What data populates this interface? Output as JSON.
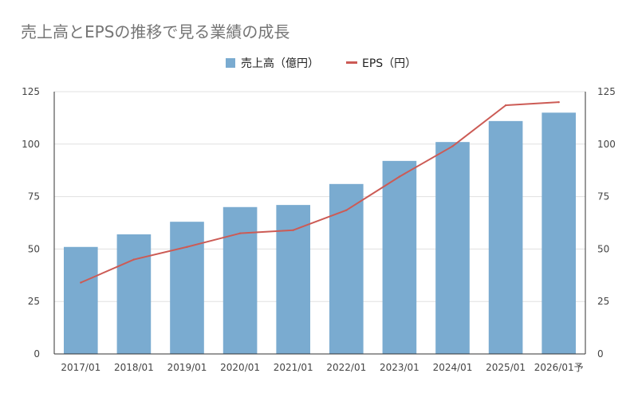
{
  "chart_data": {
    "type": "bar",
    "title": "売上高とEPSの推移で見る業績の成長",
    "categories": [
      "2017/01",
      "2018/01",
      "2019/01",
      "2020/01",
      "2021/01",
      "2022/01",
      "2023/01",
      "2024/01",
      "2025/01",
      "2026/01予"
    ],
    "series": [
      {
        "name": "売上高（億円）",
        "type": "bar",
        "axis": "left",
        "color": "#7aabd0",
        "values": [
          51,
          57,
          63,
          70,
          71,
          81,
          92,
          101,
          111,
          115
        ]
      },
      {
        "name": "EPS（円）",
        "type": "line",
        "axis": "right",
        "color": "#cc5b55",
        "values": [
          34,
          45,
          51,
          57.5,
          59,
          68.5,
          84.5,
          99,
          118.5,
          120
        ]
      }
    ],
    "ylim": [
      0,
      125
    ],
    "yticks": [
      0,
      25,
      50,
      75,
      100,
      125
    ],
    "y2lim": [
      0,
      125
    ],
    "y2ticks": [
      0,
      25,
      50,
      75,
      100,
      125
    ],
    "grid": true,
    "legend_position": "top-center"
  }
}
